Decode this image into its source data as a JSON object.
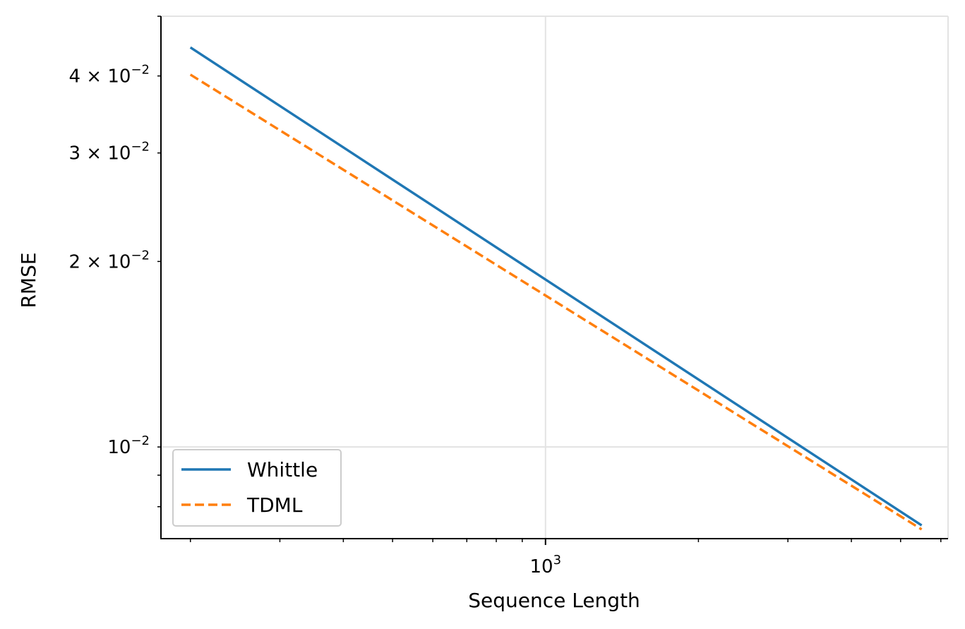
{
  "chart_data": {
    "type": "line",
    "xlabel": "Sequence Length",
    "ylabel": "RMSE",
    "xscale": "log",
    "yscale": "log",
    "xlim": [
      175,
      6200
    ],
    "ylim": [
      0.0071,
      0.05
    ],
    "grid": true,
    "legend_position": "lower left",
    "x_ticks": [
      {
        "value": 1000,
        "base": "10",
        "exp": "3"
      }
    ],
    "y_ticks": [
      {
        "value": 0.01,
        "mant": "",
        "base": "10",
        "exp": "−2"
      },
      {
        "value": 0.02,
        "mant": "2 × ",
        "base": "10",
        "exp": "−2"
      },
      {
        "value": 0.03,
        "mant": "3 × ",
        "base": "10",
        "exp": "−2"
      },
      {
        "value": 0.04,
        "mant": "4 × ",
        "base": "10",
        "exp": "−2"
      }
    ],
    "series": [
      {
        "name": "Whittle",
        "color": "#1f77b4",
        "dash": "solid",
        "x": [
          200,
          5500
        ],
        "y": [
          0.0445,
          0.00746
        ]
      },
      {
        "name": "TDML",
        "color": "#ff7f0e",
        "dash": "dashed",
        "x": [
          200,
          5500
        ],
        "y": [
          0.0402,
          0.00735
        ]
      }
    ]
  }
}
